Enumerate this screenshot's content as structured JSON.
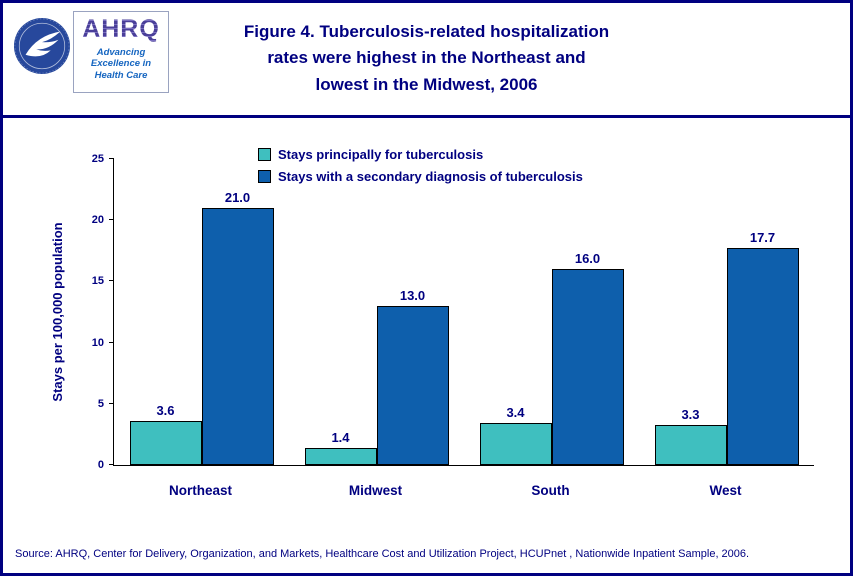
{
  "header": {
    "title": "Figure 4. Tuberculosis-related hospitalization\nrates were highest in the Northeast and\nlowest in the Midwest, 2006",
    "title_color": "#000080"
  },
  "logos": {
    "hhs_seal": "hhs-seal-icon",
    "ahrq_word": "AHRQ",
    "ahrq_tagline": "Advancing\nExcellence in\nHealth Care"
  },
  "chart_data": {
    "type": "bar",
    "categories": [
      "Northeast",
      "Midwest",
      "South",
      "West"
    ],
    "series": [
      {
        "name": "Stays principally for tuberculosis",
        "values": [
          3.6,
          1.4,
          3.4,
          3.3
        ],
        "labels": [
          "3.6",
          "1.4",
          "3.4",
          "3.3"
        ],
        "color": "#3fbfbf"
      },
      {
        "name": "Stays with a secondary diagnosis of tuberculosis",
        "values": [
          21.0,
          13.0,
          16.0,
          17.7
        ],
        "labels": [
          "21.0",
          "13.0",
          "16.0",
          "17.7"
        ],
        "color": "#0e5fac"
      }
    ],
    "title": "Figure 4. Tuberculosis-related hospitalization rates were highest in the Northeast and lowest in the Midwest, 2006",
    "xlabel": "",
    "ylabel": "Stays per 100,000 population",
    "ylim": [
      0,
      25
    ],
    "yticks": [
      0,
      5,
      10,
      15,
      20,
      25
    ],
    "grid": false,
    "legend_position": "top-center"
  },
  "colors": {
    "border_navy": "#000080",
    "text_navy": "#000080"
  },
  "source": "Source: AHRQ, Center for Delivery, Organization, and Markets, Healthcare Cost and Utilization Project, HCUPnet , Nationwide Inpatient Sample, 2006."
}
